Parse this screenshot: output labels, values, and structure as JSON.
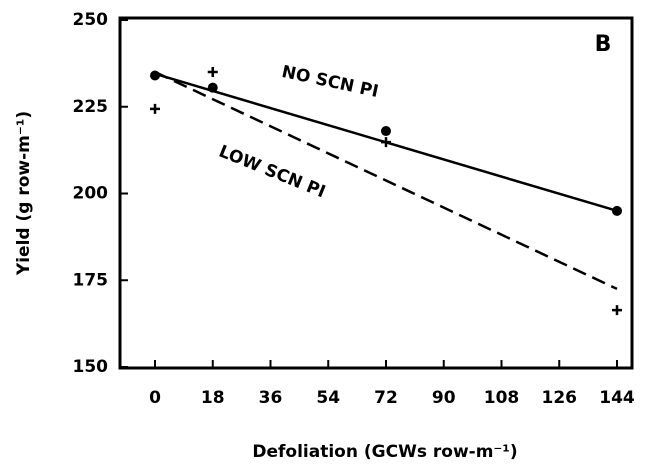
{
  "chart_data": {
    "type": "scatter",
    "title": "B",
    "x_label": "Defoliation (GCWs row-m⁻¹)",
    "y_label": "Yield (g row-m⁻¹)",
    "xlim": [
      0,
      144
    ],
    "xticks": [
      0,
      18,
      36,
      54,
      72,
      90,
      108,
      126,
      144
    ],
    "ylim": [
      150,
      250
    ],
    "yticks": [
      150,
      175,
      200,
      225,
      250
    ],
    "color": "#000000",
    "series": [
      {
        "name": "NO SCN PI",
        "marker": "circle",
        "line": "solid",
        "x": [
          0,
          18,
          72,
          144
        ],
        "values": [
          234,
          230.5,
          218,
          195
        ],
        "fit": {
          "x": [
            0,
            144
          ],
          "values": [
            234.5,
            195
          ]
        }
      },
      {
        "name": "LOW SCN PI",
        "marker": "plus",
        "line": "dashed",
        "x": [
          0,
          18,
          72,
          144
        ],
        "values": [
          224.4,
          235,
          214.8,
          166.4
        ],
        "fit": {
          "x": [
            0,
            144
          ],
          "values": [
            235,
            172.5
          ]
        }
      }
    ]
  }
}
